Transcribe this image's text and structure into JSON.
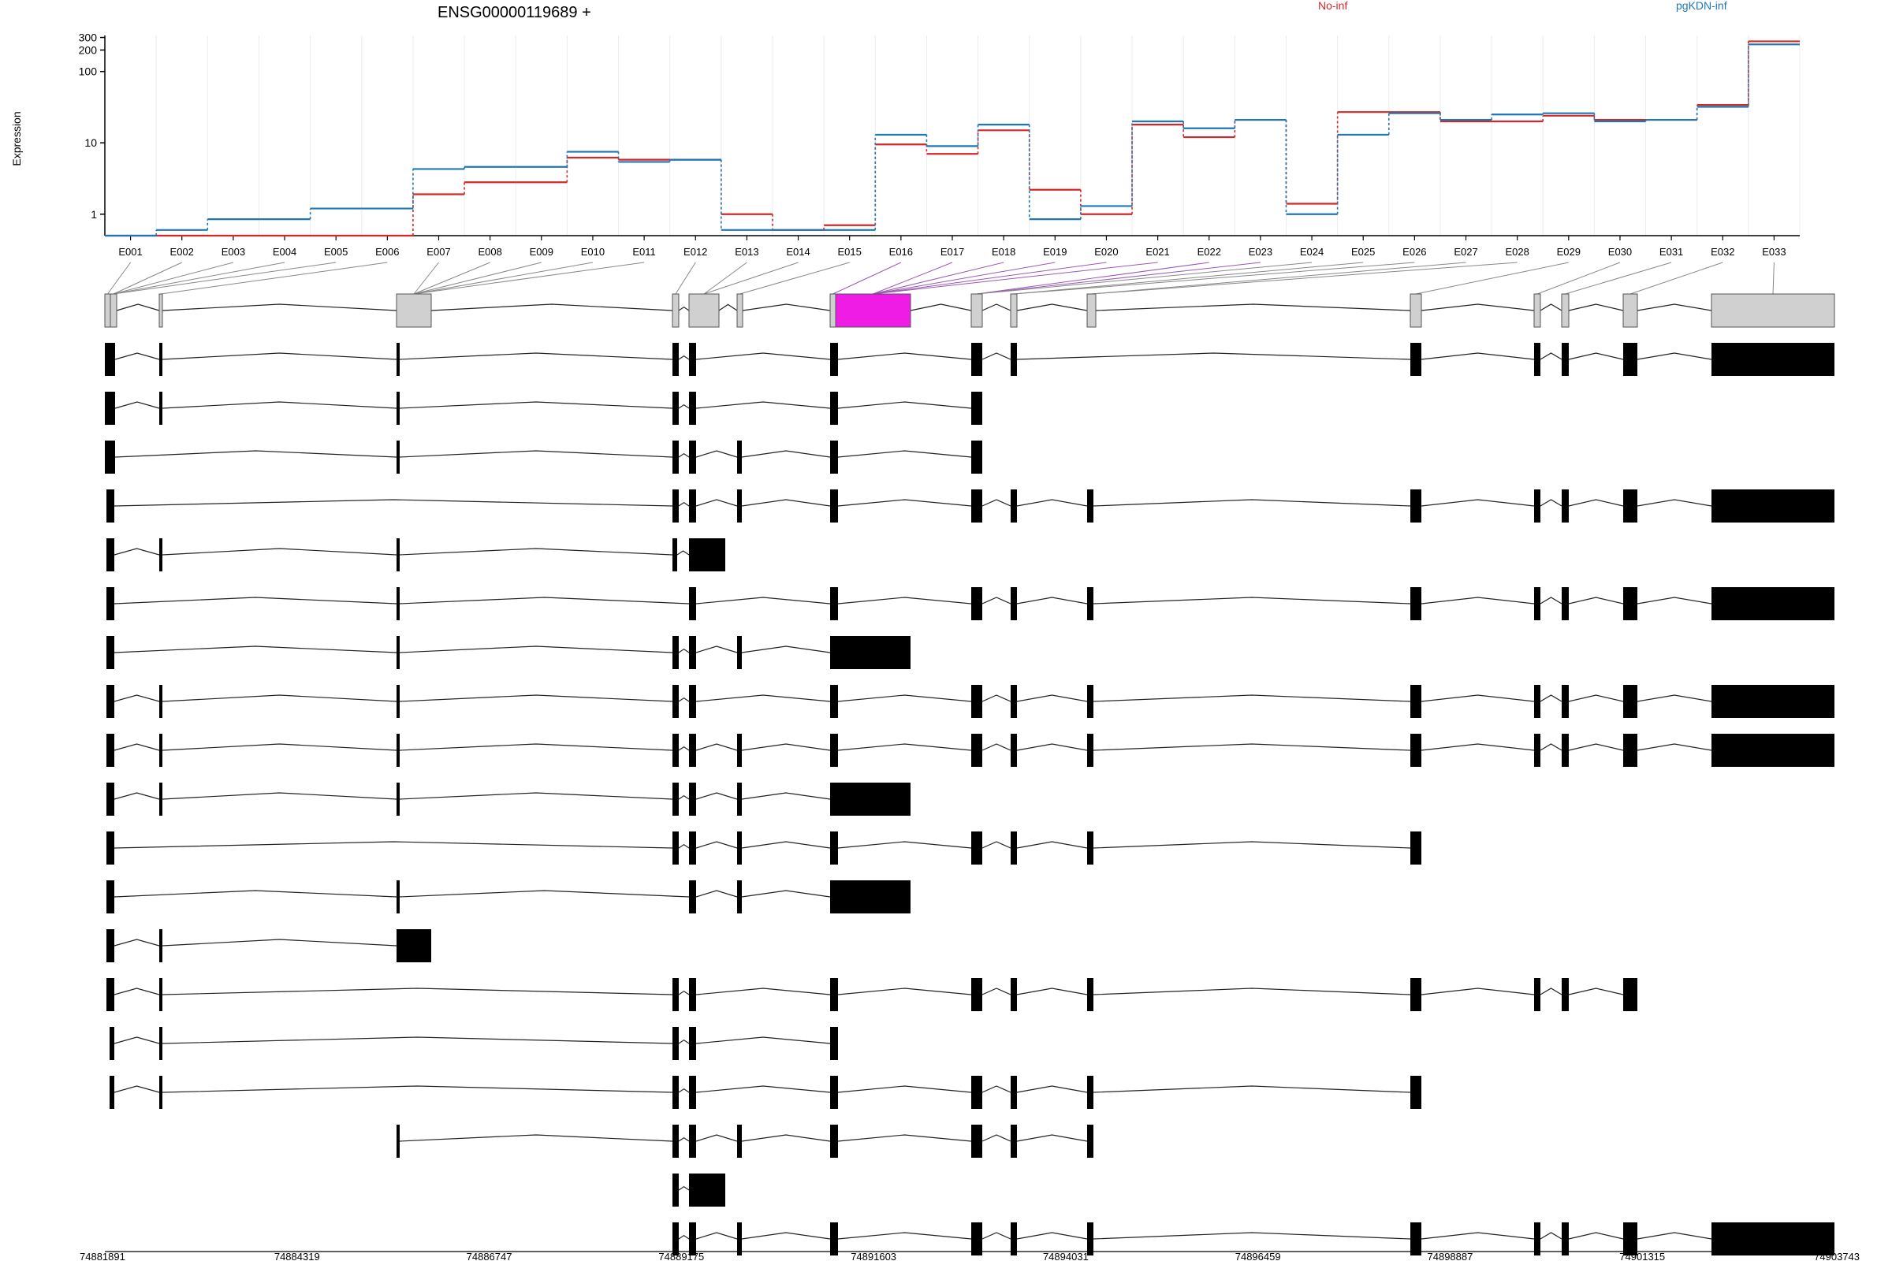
{
  "chart_data": {
    "type": "line",
    "title": "ENSG00000119689 +",
    "ylabel": "Expression",
    "yscale": "log",
    "ylim": [
      0.5,
      320
    ],
    "yticks": [
      "1",
      "10",
      "100",
      "200",
      "300"
    ],
    "categories": [
      "E001",
      "E002",
      "E003",
      "E004",
      "E005",
      "E006",
      "E007",
      "E008",
      "E009",
      "E010",
      "E011",
      "E012",
      "E013",
      "E014",
      "E015",
      "E016",
      "E017",
      "E018",
      "E019",
      "E020",
      "E021",
      "E022",
      "E023",
      "E024",
      "E025",
      "E026",
      "E027",
      "E028",
      "E029",
      "E030",
      "E031",
      "E032",
      "E033"
    ],
    "series": [
      {
        "name": "No-inf",
        "color": "#d62728",
        "values": [
          0.5,
          0.5,
          0.5,
          0.5,
          0.5,
          0.5,
          1.9,
          2.8,
          2.8,
          6.2,
          5.8,
          5.8,
          1.0,
          0.6,
          0.7,
          9.5,
          7.0,
          15,
          2.2,
          1.0,
          18,
          12,
          21,
          1.4,
          27,
          27,
          20,
          20,
          24,
          21,
          21,
          34,
          265
        ]
      },
      {
        "name": "pgKDN-inf",
        "color": "#1f77b4",
        "values": [
          0.5,
          0.6,
          0.85,
          0.85,
          1.2,
          1.2,
          4.3,
          4.6,
          4.6,
          7.5,
          5.4,
          5.8,
          0.6,
          0.6,
          0.6,
          13,
          9.0,
          18,
          0.85,
          1.3,
          20,
          16,
          21,
          1.0,
          13,
          26,
          21,
          25,
          26,
          20,
          21,
          32,
          240
        ]
      }
    ],
    "grid": true,
    "legend_position": "top",
    "coords": [
      "74881891",
      "74884319",
      "74886747",
      "74889175",
      "74891603",
      "74894031",
      "74896459",
      "74898887",
      "74901315",
      "74903743"
    ],
    "highlight_color": "#ef1ce6",
    "transcript_count": 19
  }
}
